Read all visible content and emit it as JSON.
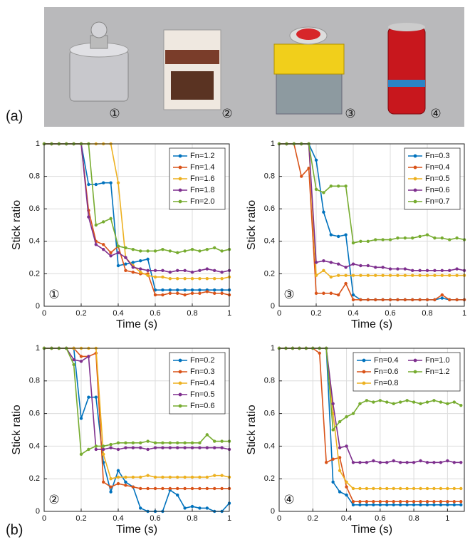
{
  "photo": {
    "panel_label": "(a)",
    "labels": [
      "①",
      "②",
      "③",
      "④"
    ]
  },
  "panel_b_label": "(b)",
  "chart_data": [
    {
      "type": "line",
      "annotation": "①",
      "xlabel": "Time (s)",
      "ylabel": "Stick ratio",
      "xlim": [
        0,
        1
      ],
      "xticks": [
        0,
        0.2,
        0.4,
        0.6,
        0.8,
        1
      ],
      "ylim": [
        0,
        1
      ],
      "yticks": [
        0,
        0.2,
        0.4,
        0.6,
        0.8,
        1
      ],
      "grid": true,
      "legend": "upper right",
      "legend_columns": 1,
      "x": [
        0,
        0.04,
        0.08,
        0.12,
        0.16,
        0.2,
        0.24,
        0.28,
        0.32,
        0.36,
        0.4,
        0.44,
        0.48,
        0.52,
        0.56,
        0.6,
        0.64,
        0.68,
        0.72,
        0.76,
        0.8,
        0.84,
        0.88,
        0.92,
        0.96,
        1
      ],
      "series": [
        {
          "name": "Fn=1.2",
          "color": "#0072bd",
          "values": [
            1,
            1,
            1,
            1,
            1,
            1,
            0.75,
            0.75,
            0.76,
            0.76,
            0.25,
            0.26,
            0.27,
            0.28,
            0.29,
            0.1,
            0.1,
            0.1,
            0.1,
            0.1,
            0.1,
            0.1,
            0.1,
            0.1,
            0.1,
            0.1
          ]
        },
        {
          "name": "Fn=1.4",
          "color": "#d95319",
          "values": [
            1,
            1,
            1,
            1,
            1,
            1,
            0.59,
            0.4,
            0.38,
            0.33,
            0.37,
            0.22,
            0.21,
            0.2,
            0.2,
            0.07,
            0.07,
            0.08,
            0.08,
            0.07,
            0.08,
            0.08,
            0.09,
            0.08,
            0.08,
            0.07
          ]
        },
        {
          "name": "Fn=1.6",
          "color": "#edb120",
          "values": [
            1,
            1,
            1,
            1,
            1,
            1,
            1,
            1,
            1,
            1,
            0.76,
            0.3,
            0.25,
            0.21,
            0.19,
            0.18,
            0.18,
            0.17,
            0.17,
            0.17,
            0.17,
            0.17,
            0.17,
            0.17,
            0.17,
            0.18
          ]
        },
        {
          "name": "Fn=1.8",
          "color": "#7e2f8e",
          "values": [
            1,
            1,
            1,
            1,
            1,
            1,
            0.55,
            0.38,
            0.35,
            0.31,
            0.33,
            0.3,
            0.24,
            0.23,
            0.22,
            0.22,
            0.22,
            0.21,
            0.22,
            0.22,
            0.21,
            0.22,
            0.23,
            0.22,
            0.21,
            0.22
          ]
        },
        {
          "name": "Fn=2.0",
          "color": "#77ac30",
          "values": [
            1,
            1,
            1,
            1,
            1,
            1,
            1,
            0.5,
            0.52,
            0.54,
            0.37,
            0.36,
            0.35,
            0.34,
            0.34,
            0.34,
            0.35,
            0.34,
            0.33,
            0.34,
            0.35,
            0.34,
            0.35,
            0.36,
            0.34,
            0.35
          ]
        }
      ]
    },
    {
      "type": "line",
      "annotation": "③",
      "xlabel": "Time (s)",
      "ylabel": "Stick ratio",
      "xlim": [
        0,
        1
      ],
      "xticks": [
        0,
        0.2,
        0.4,
        0.6,
        0.8,
        1
      ],
      "ylim": [
        0,
        1
      ],
      "yticks": [
        0,
        0.2,
        0.4,
        0.6,
        0.8,
        1
      ],
      "grid": true,
      "legend": "upper right",
      "legend_columns": 1,
      "x": [
        0,
        0.04,
        0.08,
        0.12,
        0.16,
        0.2,
        0.24,
        0.28,
        0.32,
        0.36,
        0.4,
        0.44,
        0.48,
        0.52,
        0.56,
        0.6,
        0.64,
        0.68,
        0.72,
        0.76,
        0.8,
        0.84,
        0.88,
        0.92,
        0.96,
        1
      ],
      "series": [
        {
          "name": "Fn=0.3",
          "color": "#0072bd",
          "values": [
            1,
            1,
            1,
            1,
            1,
            0.9,
            0.58,
            0.44,
            0.43,
            0.44,
            0.07,
            0.04,
            0.04,
            0.04,
            0.04,
            0.04,
            0.04,
            0.04,
            0.04,
            0.04,
            0.04,
            0.04,
            0.05,
            0.04,
            0.04,
            0.04
          ]
        },
        {
          "name": "Fn=0.4",
          "color": "#d95319",
          "values": [
            1,
            1,
            1,
            0.8,
            0.85,
            0.08,
            0.08,
            0.08,
            0.07,
            0.14,
            0.04,
            0.04,
            0.04,
            0.04,
            0.04,
            0.04,
            0.04,
            0.04,
            0.04,
            0.04,
            0.04,
            0.04,
            0.07,
            0.04,
            0.04,
            0.04
          ]
        },
        {
          "name": "Fn=0.5",
          "color": "#edb120",
          "values": [
            1,
            1,
            1,
            1,
            1,
            0.19,
            0.22,
            0.18,
            0.19,
            0.19,
            0.19,
            0.19,
            0.19,
            0.19,
            0.19,
            0.19,
            0.19,
            0.19,
            0.19,
            0.19,
            0.19,
            0.19,
            0.19,
            0.19,
            0.19,
            0.19
          ]
        },
        {
          "name": "Fn=0.6",
          "color": "#7e2f8e",
          "values": [
            1,
            1,
            1,
            1,
            1,
            0.27,
            0.28,
            0.27,
            0.26,
            0.24,
            0.26,
            0.25,
            0.25,
            0.24,
            0.24,
            0.23,
            0.23,
            0.23,
            0.22,
            0.22,
            0.22,
            0.22,
            0.22,
            0.22,
            0.23,
            0.22
          ]
        },
        {
          "name": "Fn=0.7",
          "color": "#77ac30",
          "values": [
            1,
            1,
            1,
            1,
            1,
            0.72,
            0.7,
            0.74,
            0.74,
            0.74,
            0.39,
            0.4,
            0.4,
            0.41,
            0.41,
            0.41,
            0.42,
            0.42,
            0.42,
            0.43,
            0.44,
            0.42,
            0.42,
            0.41,
            0.42,
            0.41
          ]
        }
      ]
    },
    {
      "type": "line",
      "annotation": "②",
      "xlabel": "Time (s)",
      "ylabel": "Stick ratio",
      "xlim": [
        0,
        1
      ],
      "xticks": [
        0,
        0.2,
        0.4,
        0.6,
        0.8,
        1
      ],
      "ylim": [
        0,
        1
      ],
      "yticks": [
        0,
        0.2,
        0.4,
        0.6,
        0.8,
        1
      ],
      "grid": true,
      "legend": "upper right",
      "legend_columns": 1,
      "x": [
        0,
        0.04,
        0.08,
        0.12,
        0.16,
        0.2,
        0.24,
        0.28,
        0.32,
        0.36,
        0.4,
        0.44,
        0.48,
        0.52,
        0.56,
        0.6,
        0.64,
        0.68,
        0.72,
        0.76,
        0.8,
        0.84,
        0.88,
        0.92,
        0.96,
        1
      ],
      "series": [
        {
          "name": "Fn=0.2",
          "color": "#0072bd",
          "values": [
            1,
            1,
            1,
            1,
            1,
            0.57,
            0.7,
            0.7,
            0.3,
            0.12,
            0.25,
            0.18,
            0.15,
            0.02,
            0,
            0,
            0,
            0.13,
            0.1,
            0.02,
            0.03,
            0.02,
            0.02,
            0,
            0,
            0.05
          ]
        },
        {
          "name": "Fn=0.3",
          "color": "#d95319",
          "values": [
            1,
            1,
            1,
            1,
            1,
            0.95,
            0.95,
            0.97,
            0.18,
            0.15,
            0.17,
            0.16,
            0.15,
            0.14,
            0.14,
            0.14,
            0.14,
            0.14,
            0.14,
            0.14,
            0.14,
            0.14,
            0.14,
            0.14,
            0.14,
            0.14
          ]
        },
        {
          "name": "Fn=0.4",
          "color": "#edb120",
          "values": [
            1,
            1,
            1,
            1,
            1,
            1,
            1,
            1,
            0.35,
            0.2,
            0.21,
            0.21,
            0.21,
            0.21,
            0.22,
            0.21,
            0.21,
            0.21,
            0.21,
            0.21,
            0.21,
            0.21,
            0.21,
            0.22,
            0.22,
            0.21
          ]
        },
        {
          "name": "Fn=0.5",
          "color": "#7e2f8e",
          "values": [
            1,
            1,
            1,
            1,
            0.93,
            0.92,
            0.95,
            0.38,
            0.38,
            0.39,
            0.38,
            0.39,
            0.39,
            0.39,
            0.38,
            0.39,
            0.39,
            0.39,
            0.39,
            0.39,
            0.39,
            0.39,
            0.39,
            0.39,
            0.39,
            0.38
          ]
        },
        {
          "name": "Fn=0.6",
          "color": "#77ac30",
          "values": [
            1,
            1,
            1,
            1,
            0.9,
            0.35,
            0.38,
            0.4,
            0.4,
            0.41,
            0.42,
            0.42,
            0.42,
            0.42,
            0.43,
            0.42,
            0.42,
            0.42,
            0.42,
            0.42,
            0.42,
            0.42,
            0.47,
            0.43,
            0.43,
            0.43
          ]
        }
      ]
    },
    {
      "type": "line",
      "annotation": "④",
      "xlabel": "Time (s)",
      "ylabel": "Stick ratio",
      "xlim": [
        0,
        1.1
      ],
      "xticks": [
        0,
        0.2,
        0.4,
        0.6,
        0.8,
        1
      ],
      "ylim": [
        0,
        1
      ],
      "yticks": [
        0,
        0.2,
        0.4,
        0.6,
        0.8,
        1
      ],
      "grid": true,
      "legend": "upper right",
      "legend_columns": 2,
      "x": [
        0,
        0.04,
        0.08,
        0.12,
        0.16,
        0.2,
        0.24,
        0.28,
        0.32,
        0.36,
        0.4,
        0.44,
        0.48,
        0.52,
        0.56,
        0.6,
        0.64,
        0.68,
        0.72,
        0.76,
        0.8,
        0.84,
        0.88,
        0.92,
        0.96,
        1,
        1.04,
        1.08
      ],
      "series": [
        {
          "name": "Fn=0.4",
          "color": "#0072bd",
          "values": [
            1,
            1,
            1,
            1,
            1,
            1,
            1,
            1,
            0.18,
            0.12,
            0.1,
            0.04,
            0.04,
            0.04,
            0.04,
            0.04,
            0.04,
            0.04,
            0.04,
            0.04,
            0.04,
            0.04,
            0.04,
            0.04,
            0.04,
            0.04,
            0.04,
            0.04
          ]
        },
        {
          "name": "Fn=0.6",
          "color": "#d95319",
          "values": [
            1,
            1,
            1,
            1,
            1,
            1,
            0.97,
            0.3,
            0.32,
            0.33,
            0.15,
            0.06,
            0.06,
            0.06,
            0.06,
            0.06,
            0.06,
            0.06,
            0.06,
            0.06,
            0.06,
            0.06,
            0.06,
            0.06,
            0.06,
            0.06,
            0.06,
            0.06
          ]
        },
        {
          "name": "Fn=0.8",
          "color": "#edb120",
          "values": [
            1,
            1,
            1,
            1,
            1,
            1,
            1,
            1,
            0.6,
            0.25,
            0.18,
            0.14,
            0.14,
            0.14,
            0.14,
            0.14,
            0.14,
            0.14,
            0.14,
            0.14,
            0.14,
            0.14,
            0.14,
            0.14,
            0.14,
            0.14,
            0.14,
            0.14
          ]
        },
        {
          "name": "Fn=1.0",
          "color": "#7e2f8e",
          "values": [
            1,
            1,
            1,
            1,
            1,
            1,
            1,
            1,
            0.66,
            0.39,
            0.4,
            0.3,
            0.3,
            0.3,
            0.31,
            0.3,
            0.3,
            0.31,
            0.3,
            0.3,
            0.3,
            0.31,
            0.3,
            0.3,
            0.3,
            0.31,
            0.3,
            0.3
          ]
        },
        {
          "name": "Fn=1.2",
          "color": "#77ac30",
          "values": [
            1,
            1,
            1,
            1,
            1,
            1,
            1,
            1,
            0.5,
            0.55,
            0.58,
            0.6,
            0.66,
            0.68,
            0.67,
            0.68,
            0.67,
            0.66,
            0.67,
            0.68,
            0.67,
            0.66,
            0.67,
            0.68,
            0.67,
            0.66,
            0.67,
            0.65
          ]
        }
      ]
    }
  ]
}
